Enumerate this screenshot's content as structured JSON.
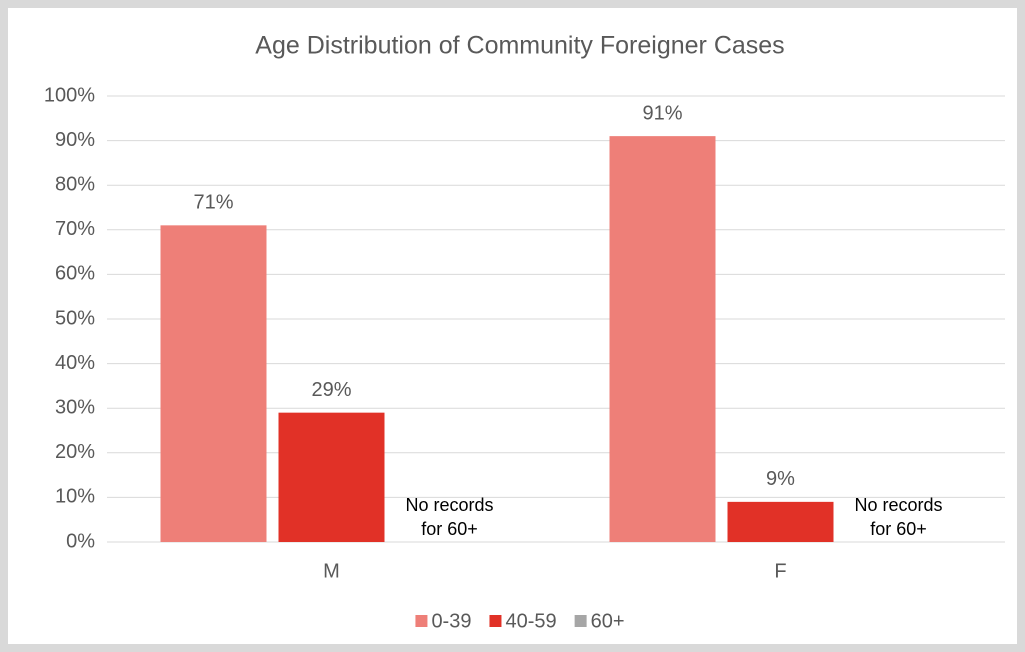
{
  "chart_data": {
    "type": "bar",
    "title": "Age Distribution of Community Foreigner Cases",
    "categories": [
      "M",
      "F"
    ],
    "series": [
      {
        "name": "0-39",
        "color": "#ee7f78",
        "values": [
          71,
          91
        ],
        "value_labels": [
          "71%",
          "91%"
        ]
      },
      {
        "name": "40-59",
        "color": "#e13127",
        "values": [
          29,
          9
        ],
        "value_labels": [
          "29%",
          "9%"
        ]
      },
      {
        "name": "60+",
        "color": "#a6a6a6",
        "values": [
          null,
          null
        ]
      }
    ],
    "annotations": [
      [
        "No records",
        "for 60+"
      ],
      [
        "No records",
        "for 60+"
      ]
    ],
    "ylim": [
      0,
      100
    ],
    "yticks": [
      {
        "value": 0,
        "label": "0%"
      },
      {
        "value": 10,
        "label": "10%"
      },
      {
        "value": 20,
        "label": "20%"
      },
      {
        "value": 30,
        "label": "30%"
      },
      {
        "value": 40,
        "label": "40%"
      },
      {
        "value": 50,
        "label": "50%"
      },
      {
        "value": 60,
        "label": "60%"
      },
      {
        "value": 70,
        "label": "70%"
      },
      {
        "value": 80,
        "label": "80%"
      },
      {
        "value": 90,
        "label": "90%"
      },
      {
        "value": 100,
        "label": "100%"
      }
    ],
    "grid": true,
    "legend": "bottom"
  }
}
